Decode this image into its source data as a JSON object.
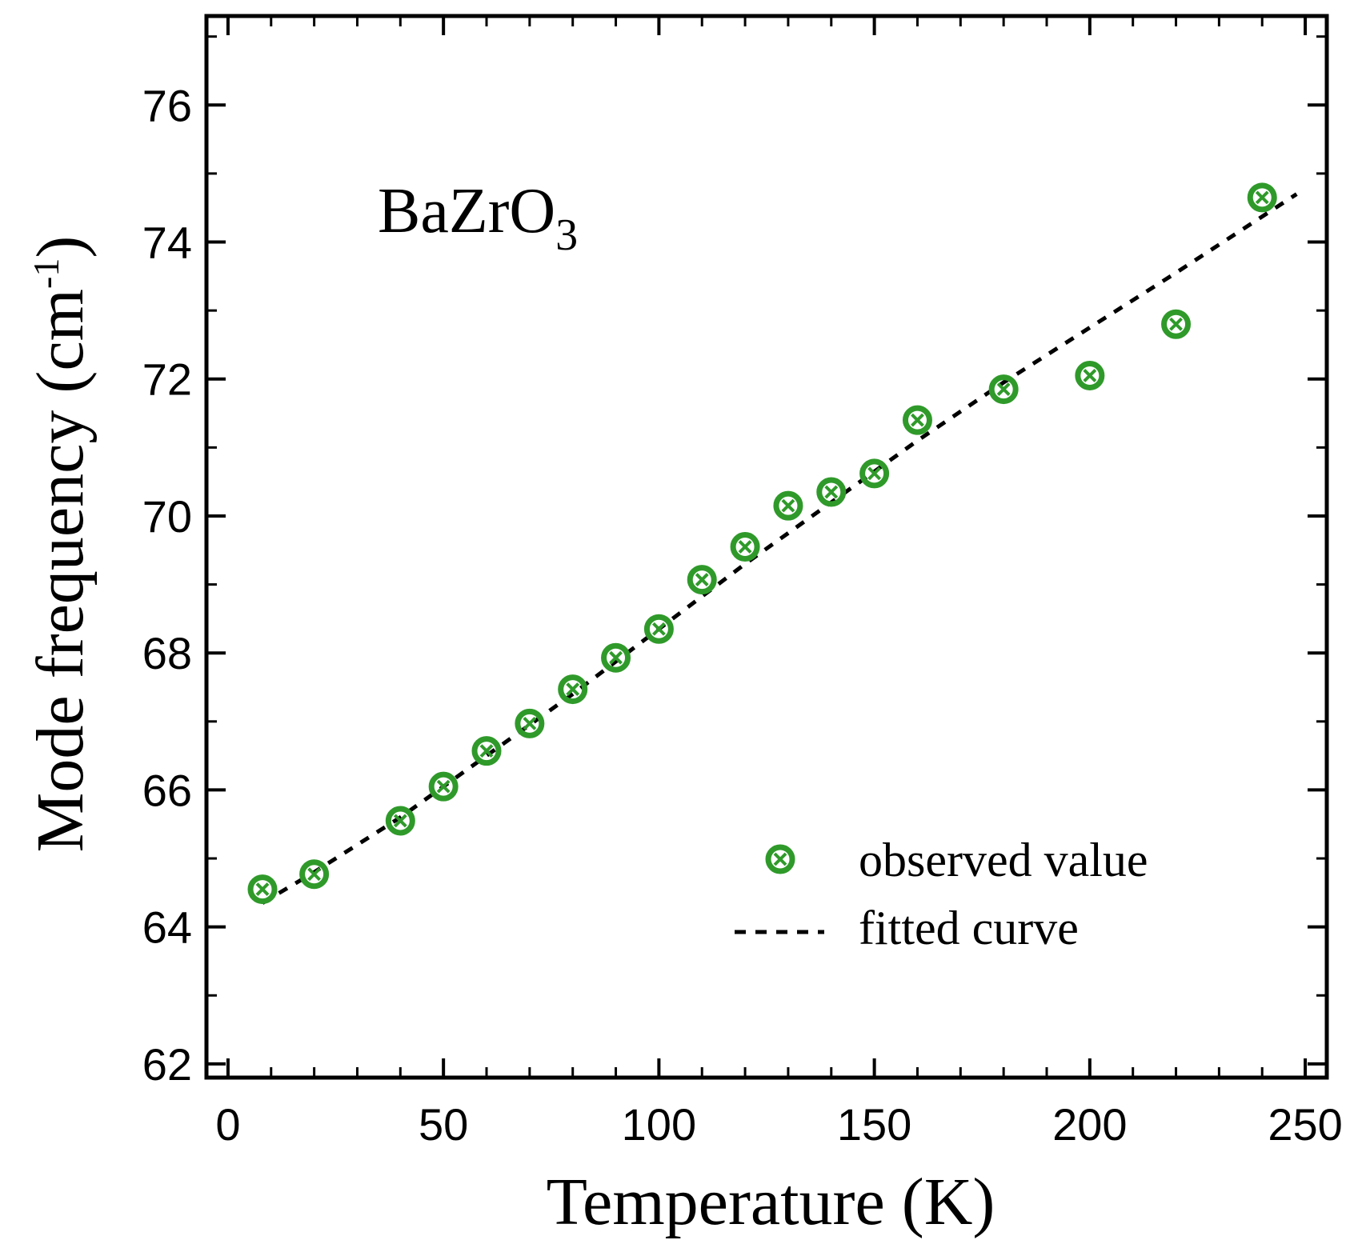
{
  "chart_data": {
    "type": "scatter",
    "title": "",
    "annotation": {
      "text": "BaZrO",
      "subscript": "3"
    },
    "xlabel": "Temperature (K)",
    "ylabel": "Mode frequency (cm",
    "ylabel_superscript": "-1",
    "ylabel_close": ")",
    "xlim": [
      -5,
      255
    ],
    "ylim": [
      61.8,
      77.3
    ],
    "xticks": [
      0,
      50,
      100,
      150,
      200,
      250
    ],
    "yticks": [
      62,
      64,
      66,
      68,
      70,
      72,
      74,
      76
    ],
    "xtick_labels": [
      "0",
      "50",
      "100",
      "150",
      "200",
      "250"
    ],
    "ytick_labels": [
      "62",
      "64",
      "66",
      "68",
      "70",
      "72",
      "74",
      "76"
    ],
    "x_minor_step": 10,
    "y_minor_step": 1,
    "grid": false,
    "legend_position": "bottom-right",
    "series": [
      {
        "name": "observed value",
        "kind": "markers",
        "color": "#2f9a2a",
        "x": [
          8,
          20,
          40,
          50,
          60,
          70,
          80,
          90,
          100,
          110,
          120,
          130,
          140,
          150,
          160,
          180,
          200,
          220,
          240
        ],
        "y": [
          64.55,
          64.77,
          65.55,
          66.05,
          66.57,
          66.97,
          67.47,
          67.93,
          68.35,
          69.07,
          69.55,
          70.15,
          70.35,
          70.62,
          71.4,
          71.85,
          72.05,
          72.8,
          74.65
        ]
      },
      {
        "name": "fitted curve",
        "kind": "dashed-line",
        "color": "#000000",
        "x": [
          8,
          20,
          40,
          60,
          80,
          100,
          120,
          140,
          160,
          180,
          200,
          220,
          248
        ],
        "y": [
          64.35,
          64.8,
          65.6,
          66.5,
          67.4,
          68.35,
          69.3,
          70.2,
          71.1,
          71.95,
          72.75,
          73.55,
          74.7
        ]
      }
    ]
  }
}
